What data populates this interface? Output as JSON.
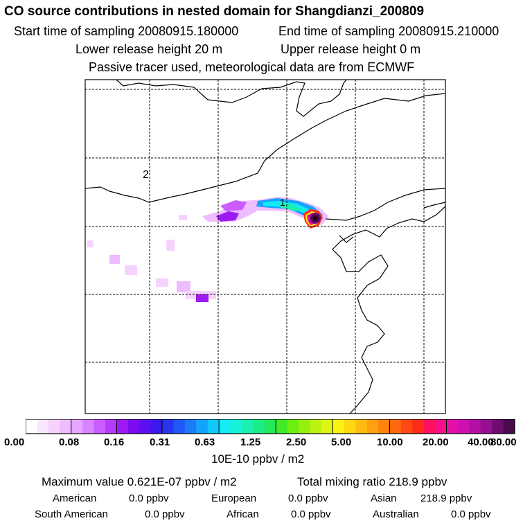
{
  "header": {
    "title": "CO  source contributions in nested domain for Shangdianzi_200809",
    "start_label": "Start time of sampling 20080915.180000",
    "end_label": "End time of sampling 20080915.210000",
    "lower_release": "Lower release height   20 m",
    "upper_release": "Upper release height    0 m",
    "tracer_note": "Passive tracer used, meteorological data are from ECMWF"
  },
  "map": {
    "region_labels": [
      "1",
      "2"
    ],
    "station_marker": "station-star-icon"
  },
  "colorbar": {
    "colors": [
      "#ffffff",
      "#fbe6ff",
      "#f6d3ff",
      "#eebcff",
      "#e6a6ff",
      "#d883ff",
      "#cb5cff",
      "#b53cfb",
      "#9d1af5",
      "#7c0cf0",
      "#5a10f0",
      "#3b18f0",
      "#2636f0",
      "#1f58f5",
      "#1b7cf8",
      "#14a3fb",
      "#11c7fb",
      "#12ecf5",
      "#16f2d8",
      "#1af0b0",
      "#1ced86",
      "#22e85a",
      "#3fea2a",
      "#6cee10",
      "#97ef10",
      "#bcf212",
      "#ddf512",
      "#fbf314",
      "#ffd812",
      "#ffbc10",
      "#ffa010",
      "#ff840e",
      "#ff680f",
      "#ff4a12",
      "#ff2c1a",
      "#ff1060",
      "#f50f88",
      "#e610a6",
      "#cf10b0",
      "#b210a2",
      "#941090",
      "#6e0c70",
      "#4a0a4c"
    ],
    "major_tick_after": [
      4,
      8,
      12,
      17,
      22,
      27,
      32,
      37
    ],
    "tick_labels": [
      "0.00",
      "0.08",
      "0.16",
      "0.31",
      "0.63",
      "1.25",
      "2.50",
      "5.00",
      "10.00",
      "20.00",
      "40.00",
      "80.00"
    ],
    "units": "10E-10 ppbv / m2"
  },
  "summary": {
    "max_value": "Maximum value  0.621E-07 ppbv / m2",
    "total_mixing": "Total mixing ratio     218.9 ppbv",
    "regions": [
      {
        "name": "American",
        "value": "0.0 ppbv"
      },
      {
        "name": "European",
        "value": "0.0 ppbv"
      },
      {
        "name": "Asian",
        "value": "218.9 ppbv"
      },
      {
        "name": "South American",
        "value": "0.0 ppbv"
      },
      {
        "name": "African",
        "value": "0.0 ppbv"
      },
      {
        "name": "Australian",
        "value": "0.0 ppbv"
      }
    ]
  }
}
